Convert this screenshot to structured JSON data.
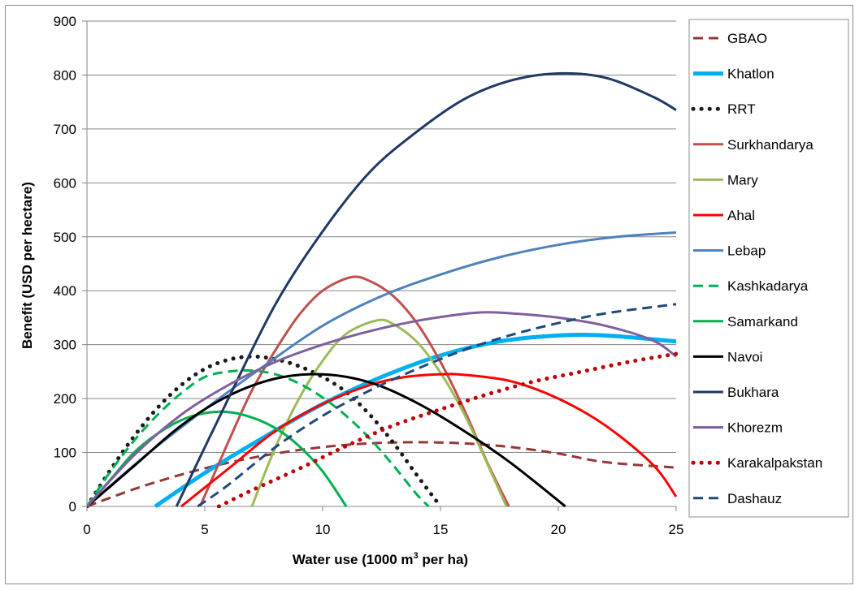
{
  "chart_data": {
    "type": "line",
    "xlabel_prefix": "Water use (1000 m",
    "xlabel_sup": "3",
    "xlabel_suffix": " per ha)",
    "ylabel": "Benefit (USD per hectare)",
    "xlim": [
      0,
      25
    ],
    "ylim": [
      0,
      900
    ],
    "xticks": [
      "0",
      "5",
      "10",
      "15",
      "20",
      "25"
    ],
    "yticks": [
      "0",
      "100",
      "200",
      "300",
      "400",
      "500",
      "600",
      "700",
      "800",
      "900"
    ],
    "grid": "horizontal",
    "legend_position": "right",
    "series": [
      {
        "name": "GBAO",
        "color": "#953735",
        "style": "dash",
        "x": [
          0,
          2,
          4,
          6,
          8,
          10,
          12,
          14,
          16,
          18,
          20,
          22,
          25
        ],
        "y": [
          0,
          32,
          59,
          81,
          98,
          110,
          117,
          119,
          117,
          110,
          98,
          82,
          72
        ]
      },
      {
        "name": "Khatlon",
        "color": "#00B0F0",
        "style": "thick",
        "x": [
          2.9,
          5,
          7.5,
          10,
          12.5,
          15,
          17.5,
          20,
          22,
          25
        ],
        "y": [
          0,
          62,
          128,
          190,
          240,
          280,
          306,
          317,
          317,
          306
        ]
      },
      {
        "name": "RRT",
        "color": "#1a1a1a",
        "style": "dot",
        "x": [
          0,
          1,
          2,
          3,
          4,
          5,
          6,
          7,
          8,
          9,
          10,
          11,
          12,
          13,
          14,
          15
        ],
        "y": [
          0,
          68,
          130,
          183,
          225,
          255,
          272,
          278,
          273,
          260,
          240,
          212,
          170,
          118,
          58,
          0
        ]
      },
      {
        "name": "Surkhandarya",
        "color": "#C0504D",
        "style": "solid",
        "x": [
          4.8,
          6,
          7,
          8,
          9,
          10,
          11.2,
          12,
          13,
          14,
          15,
          16,
          17,
          17.9
        ],
        "y": [
          0,
          120,
          215,
          290,
          355,
          400,
          425,
          418,
          390,
          340,
          268,
          180,
          80,
          0
        ]
      },
      {
        "name": "Mary",
        "color": "#9BBB59",
        "style": "solid",
        "x": [
          7,
          8,
          9,
          10,
          11,
          12.3,
          13,
          14,
          15,
          16,
          17,
          17.8
        ],
        "y": [
          0,
          110,
          200,
          270,
          320,
          345,
          338,
          305,
          248,
          172,
          78,
          0
        ]
      },
      {
        "name": "Ahal",
        "color": "#FF0000",
        "style": "solid",
        "x": [
          4,
          6,
          8,
          10,
          12,
          13.5,
          15,
          16,
          18,
          20,
          22,
          24,
          25
        ],
        "y": [
          0,
          70,
          140,
          190,
          225,
          240,
          245,
          244,
          232,
          200,
          150,
          78,
          18
        ]
      },
      {
        "name": "Lebap",
        "color": "#4F81BD",
        "style": "solid",
        "x": [
          0,
          2.5,
          5,
          7.5,
          10,
          12.5,
          15,
          17.5,
          20,
          22.5,
          25
        ],
        "y": [
          0,
          95,
          180,
          260,
          335,
          390,
          430,
          462,
          485,
          500,
          508
        ]
      },
      {
        "name": "Kashkadarya",
        "color": "#00B050",
        "style": "dash",
        "x": [
          0,
          1,
          2,
          3,
          4,
          5,
          6,
          7,
          8,
          9,
          10,
          11,
          12,
          13,
          14,
          14.5
        ],
        "y": [
          0,
          65,
          122,
          170,
          210,
          240,
          250,
          252,
          245,
          228,
          202,
          168,
          126,
          76,
          22,
          0
        ]
      },
      {
        "name": "Samarkand",
        "color": "#00B050",
        "style": "solid",
        "x": [
          0,
          1,
          2,
          3,
          4,
          5,
          6,
          7,
          8,
          9,
          10,
          11
        ],
        "y": [
          0,
          50,
          100,
          135,
          160,
          173,
          175,
          165,
          145,
          112,
          65,
          0
        ]
      },
      {
        "name": "Navoi",
        "color": "#000000",
        "style": "solid",
        "x": [
          0,
          2,
          4,
          6,
          8,
          10,
          12,
          14,
          16,
          18,
          20.3
        ],
        "y": [
          0,
          75,
          150,
          205,
          237,
          245,
          230,
          192,
          140,
          80,
          0
        ]
      },
      {
        "name": "Bukhara",
        "color": "#1F3864",
        "style": "solid",
        "x": [
          3.8,
          6,
          8,
          10,
          12,
          14,
          16,
          18,
          20,
          22,
          24,
          25
        ],
        "y": [
          0,
          200,
          375,
          510,
          620,
          695,
          755,
          790,
          803,
          795,
          760,
          735
        ]
      },
      {
        "name": "Khorezm",
        "color": "#7F5FA0",
        "style": "solid",
        "x": [
          0,
          2,
          4,
          6,
          8,
          10,
          12,
          14,
          16,
          17,
          18,
          20,
          22,
          24,
          25
        ],
        "y": [
          0,
          95,
          170,
          225,
          268,
          300,
          325,
          344,
          357,
          360,
          358,
          350,
          335,
          308,
          278
        ]
      },
      {
        "name": "Karakalpakstan",
        "color": "#C00000",
        "style": "dot",
        "x": [
          5.6,
          7,
          9,
          11,
          13,
          15,
          17,
          19,
          21,
          23,
          25
        ],
        "y": [
          0,
          30,
          70,
          112,
          150,
          180,
          208,
          232,
          250,
          268,
          283
        ]
      },
      {
        "name": "Dashauz",
        "color": "#1F497D",
        "style": "dash",
        "x": [
          4.7,
          6,
          8,
          10,
          12,
          14,
          16,
          18,
          20,
          22,
          25
        ],
        "y": [
          0,
          40,
          110,
          168,
          215,
          255,
          290,
          318,
          340,
          358,
          375
        ]
      }
    ]
  }
}
